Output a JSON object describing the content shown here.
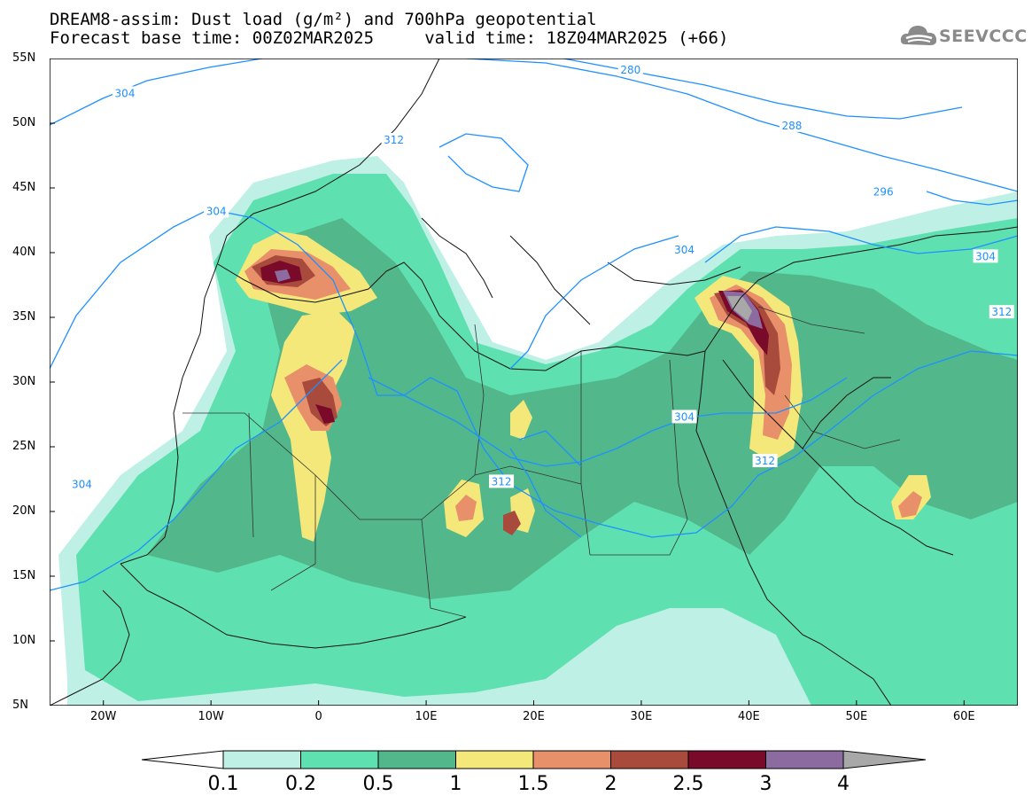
{
  "title": {
    "line1": "DREAM8-assim: Dust load (g/m²) and 700hPa geopotential",
    "line2": "Forecast base time: 00Z02MAR2025     valid time: 18Z04MAR2025 (+66)"
  },
  "logo": {
    "text": "SEEVCCC",
    "icon": "cloud-icon"
  },
  "axes": {
    "lat_labels": [
      "55N",
      "50N",
      "45N",
      "40N",
      "35N",
      "30N",
      "25N",
      "20N",
      "15N",
      "10N",
      "5N"
    ],
    "lon_labels": [
      "20W",
      "10W",
      "0",
      "10E",
      "20E",
      "30E",
      "40E",
      "50E",
      "60E"
    ],
    "lat_range": [
      5,
      55
    ],
    "lon_range": [
      -25,
      65
    ]
  },
  "contours": {
    "color": "#1e90ff",
    "labels": [
      {
        "text": "304",
        "lon": -18,
        "lat": 52.3
      },
      {
        "text": "280",
        "lon": 29,
        "lat": 54.1
      },
      {
        "text": "288",
        "lon": 44,
        "lat": 49.8
      },
      {
        "text": "312",
        "lon": 7,
        "lat": 48.7
      },
      {
        "text": "296",
        "lon": 52.5,
        "lat": 44.7
      },
      {
        "text": "304",
        "lon": -9.5,
        "lat": 43.2
      },
      {
        "text": "304",
        "lon": 34,
        "lat": 40.2
      },
      {
        "text": "304",
        "lon": 62,
        "lat": 39.7
      },
      {
        "text": "312",
        "lon": 63.5,
        "lat": 35.4
      },
      {
        "text": "304",
        "lon": 34,
        "lat": 27.3
      },
      {
        "text": "312",
        "lon": 41.5,
        "lat": 23.9
      },
      {
        "text": "312",
        "lon": 17,
        "lat": 22.3
      },
      {
        "text": "304",
        "lon": -22,
        "lat": 22.1
      }
    ]
  },
  "colorbar": {
    "labels": [
      "0.1",
      "0.2",
      "0.5",
      "1",
      "1.5",
      "2",
      "2.5",
      "3",
      "4"
    ],
    "colors": [
      "#bff0e6",
      "#5fe0b0",
      "#52b88c",
      "#f5e87a",
      "#e8906a",
      "#a84a3c",
      "#7a0a2a",
      "#8c6ca0",
      "#a8a8a8"
    ]
  }
}
